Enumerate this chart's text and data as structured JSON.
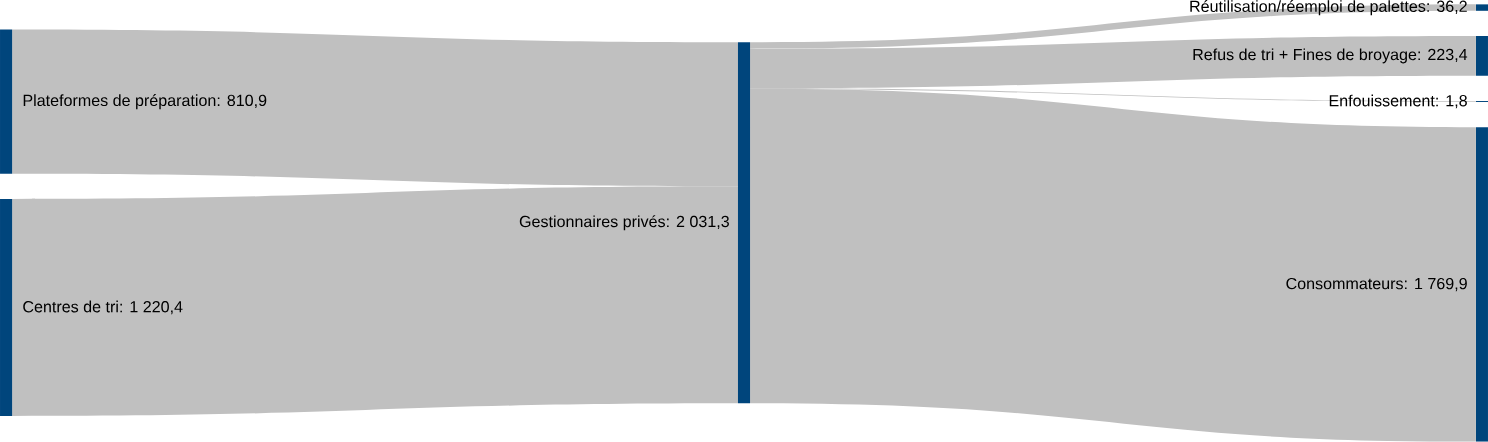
{
  "chart_data": {
    "type": "other",
    "categories": [
      "Plateformes de préparation",
      "Centres de tri",
      "Gestionnaires privés",
      "Réutilisation/réemploi de palettes",
      "Refus de tri + Fines de broyage",
      "Enfouissement",
      "Consommateurs"
    ],
    "values": [
      810.9,
      1220.4,
      2031.3,
      36.2,
      223.4,
      1.8,
      1769.9
    ],
    "value_labels": [
      ": 810,9",
      ": 1 220,4",
      ": 2 031,3",
      ": 36,2",
      ": 223,4",
      ": 1,8",
      ": 1 769,9"
    ],
    "color": "#c0c0c0"
  }
}
